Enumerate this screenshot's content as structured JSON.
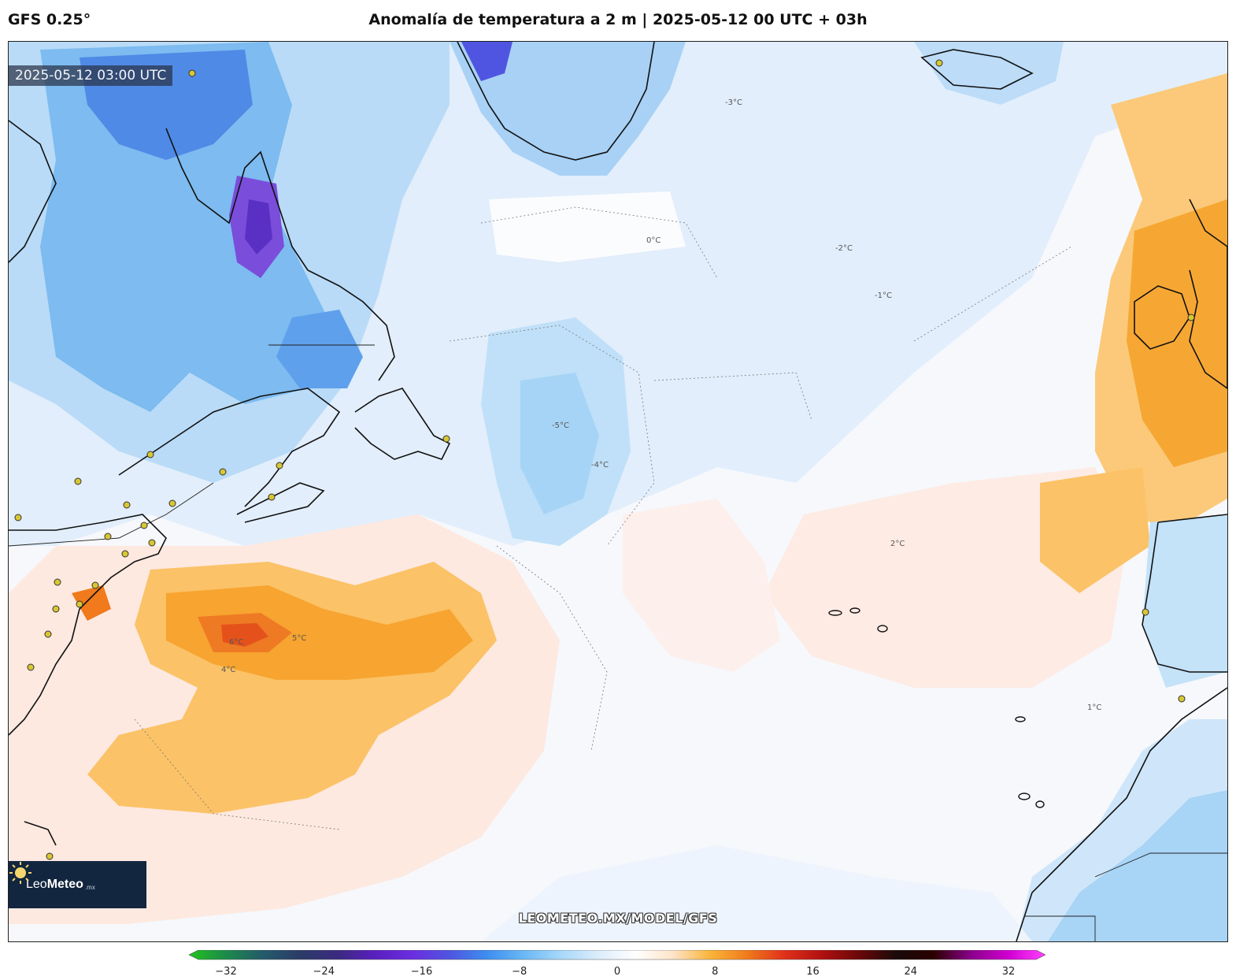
{
  "header": {
    "model": "GFS 0.25°",
    "title": "Anomalía de temperatura a 2 m | 2025-05-12 00 UTC + 03h"
  },
  "map": {
    "valid_time": "2025-05-12 03:00 UTC",
    "watermark": "LEOMETEO.MX/MODEL/GFS",
    "logo": {
      "name_light": "Leo",
      "name_bold": "Meteo",
      "suffix": ".mx"
    },
    "contour_labels": [
      "-5°C",
      "-4°C",
      "-3°C",
      "-2°C",
      "-1°C",
      "0°C",
      "1°C",
      "2°C",
      "4°C",
      "5°C",
      "6°C"
    ],
    "label_positions": [
      {
        "text": "-5°C",
        "id": "lbl-a"
      },
      {
        "text": "-4°C",
        "id": "lbl-b"
      },
      {
        "text": "-3°C",
        "id": "lbl-c"
      },
      {
        "text": "-2°C",
        "id": "lbl-d"
      },
      {
        "text": "-1°C",
        "id": "lbl-e"
      },
      {
        "text": "0°C",
        "id": "lbl-f"
      },
      {
        "text": "1°C",
        "id": "lbl-g"
      },
      {
        "text": "2°C",
        "id": "lbl-h"
      },
      {
        "text": "4°C",
        "id": "lbl-i"
      },
      {
        "text": "5°C",
        "id": "lbl-j"
      },
      {
        "text": "6°C",
        "id": "lbl-k"
      }
    ]
  },
  "colorbar": {
    "min": -32,
    "max": 32,
    "ticks": [
      "−32",
      "−24",
      "−16",
      "−8",
      "0",
      "8",
      "16",
      "24",
      "32"
    ],
    "colors": [
      "#22c31d",
      "#1c8a4a",
      "#245a6a",
      "#2b3b68",
      "#3b2a80",
      "#5a1fbf",
      "#6a2ee0",
      "#4f55e0",
      "#3d8ef0",
      "#6ab8f5",
      "#a8d8fa",
      "#dcedfb",
      "#ffffff",
      "#fde4c8",
      "#f9b43a",
      "#f07a1c",
      "#e0301a",
      "#b01010",
      "#6a0808",
      "#1a0a0a",
      "#2a0000",
      "#8a008a",
      "#d000d0",
      "#ff40ff"
    ]
  },
  "palette": {
    "ocean_base": "#f7f9fd",
    "cold_light": "#d9ebfb",
    "cold_mid": "#a9d4f6",
    "cold_strong": "#5fa9ec",
    "cold_deep": "#3a6fe0",
    "cold_extreme": "#6a3fd6",
    "warm_light": "#fde6dc",
    "warm_mid": "#fbc16a",
    "warm_strong": "#f59a2a",
    "warm_hot": "#e8571e"
  }
}
